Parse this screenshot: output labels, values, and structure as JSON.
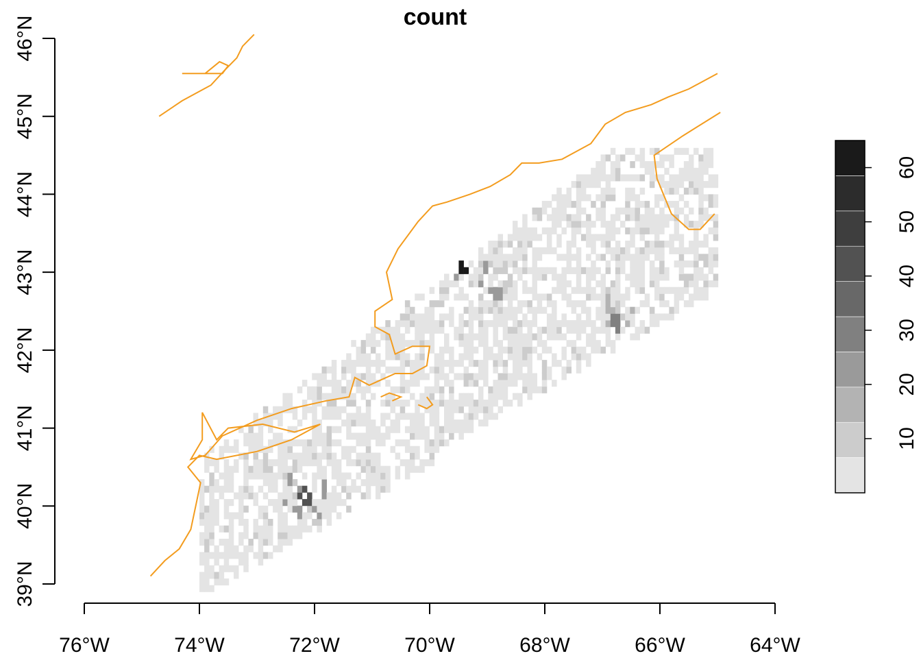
{
  "title": "count",
  "x_axis": {
    "ticks": [
      -76,
      -74,
      -72,
      -70,
      -68,
      -66,
      -64
    ],
    "labels": [
      "76°W",
      "74°W",
      "72°W",
      "70°W",
      "68°W",
      "66°W",
      "64°W"
    ]
  },
  "y_axis": {
    "ticks": [
      39,
      40,
      41,
      42,
      43,
      44,
      45,
      46
    ],
    "labels": [
      "39°N",
      "40°N",
      "41°N",
      "42°N",
      "43°N",
      "44°N",
      "45°N",
      "46°N"
    ]
  },
  "extent": {
    "lon": [
      -76,
      -64
    ],
    "lat": [
      39,
      46
    ]
  },
  "legend": {
    "ticks": [
      10,
      20,
      30,
      40,
      50,
      60
    ],
    "labels": [
      "10",
      "20",
      "30",
      "40",
      "50",
      "60"
    ],
    "min": 0,
    "max": 65,
    "colors": [
      "#e4e4e4",
      "#cccccc",
      "#b3b3b3",
      "#9a9a9a",
      "#808080",
      "#686868",
      "#525252",
      "#3e3e3e",
      "#2c2c2c",
      "#1a1a1a"
    ]
  },
  "coast_color": "#f39c1e",
  "coastline": [
    [
      [
        -74.85,
        39.1
      ],
      [
        -74.6,
        39.3
      ],
      [
        -74.35,
        39.45
      ],
      [
        -74.15,
        39.7
      ],
      [
        -74.05,
        40.05
      ],
      [
        -73.98,
        40.3
      ],
      [
        -74.2,
        40.5
      ],
      [
        -74.0,
        40.65
      ],
      [
        -73.7,
        40.6
      ],
      [
        -73.0,
        40.7
      ],
      [
        -72.4,
        40.85
      ],
      [
        -71.9,
        41.05
      ],
      [
        -72.35,
        40.95
      ],
      [
        -72.9,
        41.05
      ],
      [
        -73.5,
        41.0
      ],
      [
        -73.7,
        40.85
      ],
      [
        -73.95,
        41.2
      ],
      [
        -73.95,
        40.85
      ],
      [
        -74.15,
        40.6
      ],
      [
        -73.9,
        40.65
      ],
      [
        -73.6,
        40.9
      ],
      [
        -73.0,
        41.1
      ],
      [
        -72.4,
        41.25
      ],
      [
        -71.8,
        41.35
      ],
      [
        -71.4,
        41.4
      ],
      [
        -71.3,
        41.65
      ],
      [
        -71.05,
        41.55
      ],
      [
        -70.9,
        41.6
      ],
      [
        -70.6,
        41.7
      ],
      [
        -70.3,
        41.7
      ],
      [
        -70.05,
        41.8
      ],
      [
        -70.0,
        42.05
      ],
      [
        -70.3,
        42.05
      ],
      [
        -70.6,
        41.95
      ],
      [
        -70.7,
        42.2
      ],
      [
        -70.95,
        42.3
      ],
      [
        -70.95,
        42.5
      ],
      [
        -70.65,
        42.65
      ],
      [
        -70.75,
        43.0
      ],
      [
        -70.55,
        43.3
      ],
      [
        -70.2,
        43.65
      ],
      [
        -69.95,
        43.85
      ],
      [
        -69.7,
        43.9
      ],
      [
        -69.3,
        44.0
      ],
      [
        -68.95,
        44.1
      ],
      [
        -68.6,
        44.25
      ],
      [
        -68.4,
        44.4
      ],
      [
        -68.1,
        44.4
      ],
      [
        -67.7,
        44.45
      ],
      [
        -67.2,
        44.65
      ],
      [
        -66.95,
        44.9
      ],
      [
        -66.6,
        45.05
      ],
      [
        -66.15,
        45.15
      ],
      [
        -65.85,
        45.25
      ],
      [
        -65.5,
        45.35
      ],
      [
        -65.0,
        45.55
      ]
    ],
    [
      [
        -64.95,
        45.05
      ],
      [
        -65.6,
        44.75
      ],
      [
        -66.1,
        44.5
      ],
      [
        -66.05,
        44.2
      ],
      [
        -65.8,
        43.75
      ],
      [
        -65.5,
        43.55
      ],
      [
        -65.3,
        43.55
      ],
      [
        -65.05,
        43.75
      ]
    ],
    [
      [
        -74.7,
        45.0
      ],
      [
        -74.3,
        45.2
      ],
      [
        -73.8,
        45.4
      ],
      [
        -73.55,
        45.6
      ],
      [
        -73.35,
        45.75
      ],
      [
        -73.25,
        45.9
      ],
      [
        -73.05,
        46.05
      ]
    ],
    [
      [
        -74.3,
        45.55
      ],
      [
        -73.9,
        45.55
      ],
      [
        -73.65,
        45.7
      ],
      [
        -73.5,
        45.65
      ],
      [
        -73.6,
        45.55
      ],
      [
        -73.9,
        45.55
      ]
    ],
    [
      [
        -70.85,
        41.4
      ],
      [
        -70.7,
        41.45
      ],
      [
        -70.5,
        41.4
      ],
      [
        -70.65,
        41.35
      ]
    ],
    [
      [
        -70.2,
        41.3
      ],
      [
        -70.05,
        41.25
      ],
      [
        -69.95,
        41.3
      ],
      [
        -70.05,
        41.4
      ]
    ]
  ]
}
